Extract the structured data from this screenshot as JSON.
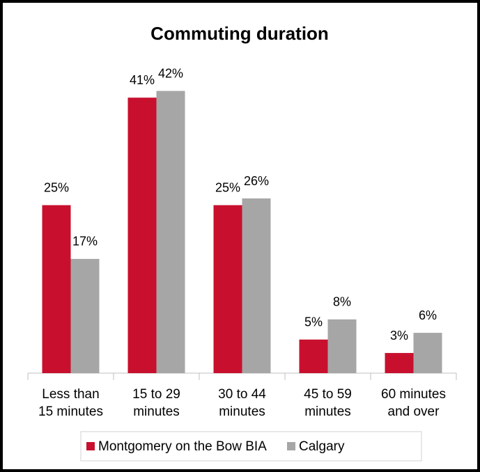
{
  "chart_data": {
    "type": "bar",
    "title": "Commuting duration",
    "categories": [
      [
        "Less than",
        "15 minutes"
      ],
      [
        "15 to 29",
        "minutes"
      ],
      [
        "30 to 44",
        "minutes"
      ],
      [
        "45 to 59",
        "minutes"
      ],
      [
        "60 minutes",
        "and over"
      ]
    ],
    "series": [
      {
        "name": "Montgomery on the Bow BIA",
        "color": "#c8102e",
        "values": [
          25,
          41,
          25,
          5,
          3
        ],
        "value_labels": [
          "25%",
          "41%",
          "25%",
          "5%",
          "3%"
        ]
      },
      {
        "name": "Calgary",
        "color": "#a6a6a6",
        "values": [
          17,
          42,
          26,
          8,
          6
        ],
        "value_labels": [
          "17%",
          "42%",
          "26%",
          "8%",
          "6%"
        ]
      }
    ],
    "ylim": [
      0,
      46
    ],
    "legend": "bottom"
  }
}
